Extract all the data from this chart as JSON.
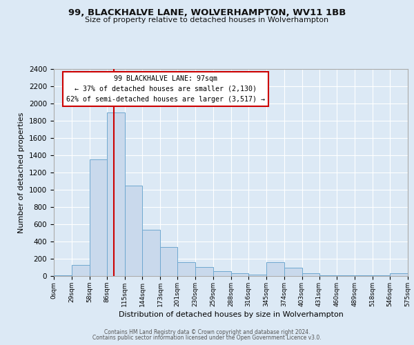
{
  "title1": "99, BLACKHALVE LANE, WOLVERHAMPTON, WV11 1BB",
  "title2": "Size of property relative to detached houses in Wolverhampton",
  "xlabel": "Distribution of detached houses by size in Wolverhampton",
  "ylabel": "Number of detached properties",
  "footer1": "Contains HM Land Registry data © Crown copyright and database right 2024.",
  "footer2": "Contains public sector information licensed under the Open Government Licence v3.0.",
  "bin_edges": [
    0,
    29,
    58,
    86,
    115,
    144,
    173,
    201,
    230,
    259,
    288,
    316,
    345,
    374,
    403,
    431,
    460,
    489,
    518,
    546,
    575
  ],
  "bar_heights": [
    10,
    125,
    1350,
    1900,
    1050,
    540,
    335,
    160,
    105,
    60,
    30,
    15,
    160,
    100,
    30,
    5,
    5,
    5,
    5,
    30
  ],
  "bar_color": "#c9d9ec",
  "bar_edge_color": "#6fa8d0",
  "property_size": 97,
  "vline_color": "#cc0000",
  "annotation_line1": "99 BLACKHALVE LANE: 97sqm",
  "annotation_line2": "← 37% of detached houses are smaller (2,130)",
  "annotation_line3": "62% of semi-detached houses are larger (3,517) →",
  "annotation_box_color": "#ffffff",
  "annotation_box_edge": "#cc0000",
  "ylim": [
    0,
    2400
  ],
  "yticks": [
    0,
    200,
    400,
    600,
    800,
    1000,
    1200,
    1400,
    1600,
    1800,
    2000,
    2200,
    2400
  ],
  "background_color": "#dce9f5",
  "plot_bg_color": "#dce9f5",
  "grid_color": "#ffffff",
  "tick_labels": [
    "0sqm",
    "29sqm",
    "58sqm",
    "86sqm",
    "115sqm",
    "144sqm",
    "173sqm",
    "201sqm",
    "230sqm",
    "259sqm",
    "288sqm",
    "316sqm",
    "345sqm",
    "374sqm",
    "403sqm",
    "431sqm",
    "460sqm",
    "489sqm",
    "518sqm",
    "546sqm",
    "575sqm"
  ]
}
